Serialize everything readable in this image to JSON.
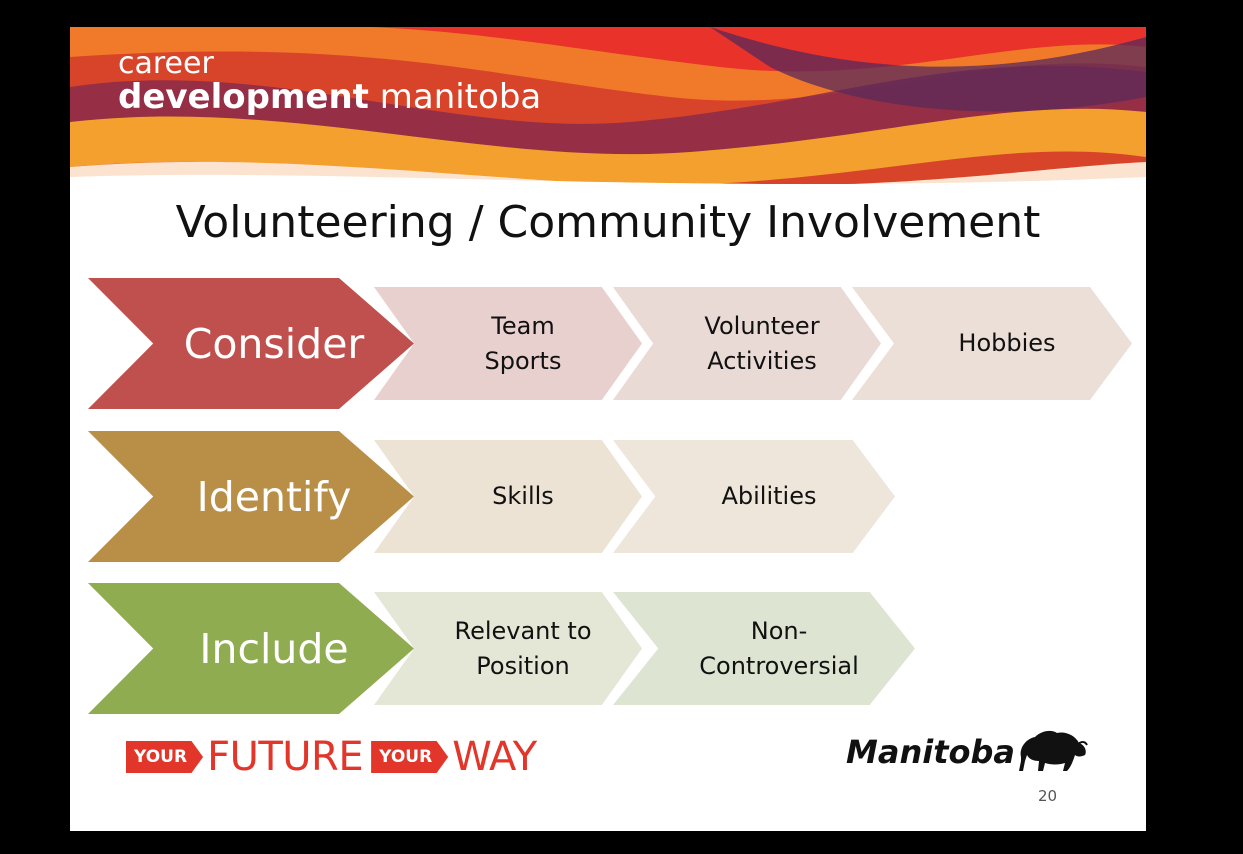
{
  "brand": {
    "line1": "career",
    "line2_bold": "development",
    "line2_rest": "manitoba"
  },
  "title": "Volunteering / Community Involvement",
  "rows": [
    {
      "label": "Consider",
      "color": "#c0504d",
      "items": [
        "Team\nSports",
        "Volunteer\nActivities",
        "Hobbies"
      ],
      "item_colors": [
        "#e8d0cf",
        "#eadad6",
        "#ecdfd8"
      ]
    },
    {
      "label": "Identify",
      "color": "#b98f47",
      "items": [
        "Skills",
        "Abilities"
      ],
      "item_colors": [
        "#ece3d5",
        "#eee6da"
      ]
    },
    {
      "label": "Include",
      "color": "#8fad50",
      "items": [
        "Relevant to\nPosition",
        "Non-\nControversial"
      ],
      "item_colors": [
        "#e4e7d5",
        "#dde5d2"
      ]
    }
  ],
  "footer": {
    "tag1": "YOUR",
    "word1": "FUTURE",
    "tag2": "YOUR",
    "word2": "WAY",
    "logo_text": "Manitoba",
    "logo_icon": "bison-icon",
    "page_number": "20"
  },
  "colors": {
    "tag_red": "#e2362a"
  }
}
